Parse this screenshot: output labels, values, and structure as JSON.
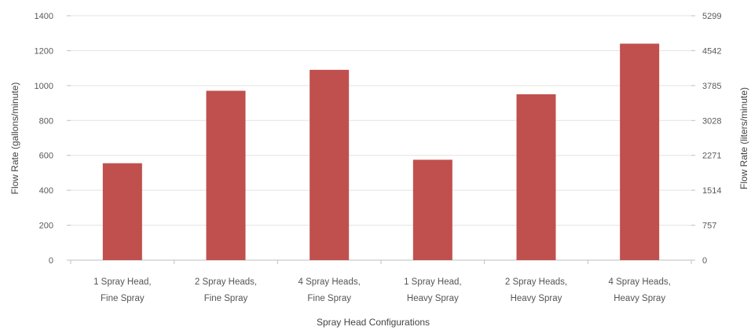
{
  "chart_data": {
    "type": "bar",
    "title": "",
    "categories": [
      [
        "1 Spray Head,",
        "Fine Spray"
      ],
      [
        "2 Spray Heads,",
        "Fine Spray"
      ],
      [
        "4 Spray Heads,",
        "Fine Spray"
      ],
      [
        "1 Spray Head,",
        "Heavy Spray"
      ],
      [
        "2 Spray Heads,",
        "Heavy Spray"
      ],
      [
        "4 Spray Heads,",
        "Heavy Spray"
      ]
    ],
    "values": [
      555,
      970,
      1090,
      575,
      950,
      1240
    ],
    "xlabel": "Spray Head Configurations",
    "ylabel": "Flow Rate (gallons/minute)",
    "y2label": "Flow Rate (liters/minute)",
    "ylim": [
      0,
      1400
    ],
    "yticks": [
      "0",
      "200",
      "400",
      "600",
      "800",
      "1000",
      "1200",
      "1400"
    ],
    "y2ticks": [
      "0",
      "757",
      "1514",
      "2271",
      "3028",
      "3785",
      "4542",
      "5299"
    ],
    "bar_color": "#c0504d",
    "grid": true,
    "legend": "none"
  }
}
